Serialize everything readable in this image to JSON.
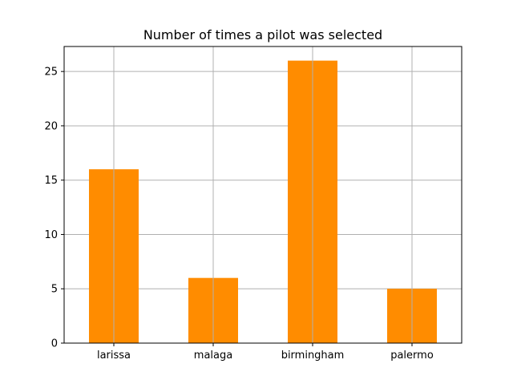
{
  "chart_data": {
    "type": "bar",
    "title": "Number of times a pilot was selected",
    "xlabel": "",
    "ylabel": "",
    "categories": [
      "larissa",
      "malaga",
      "birmingham",
      "palermo"
    ],
    "values": [
      16,
      6,
      26,
      5
    ],
    "ylim": [
      0,
      27.3
    ],
    "yticks": [
      0,
      5,
      10,
      15,
      20,
      25
    ],
    "grid": true,
    "bar_color": "#ff8c00",
    "grid_color": "#b0b0b0"
  }
}
